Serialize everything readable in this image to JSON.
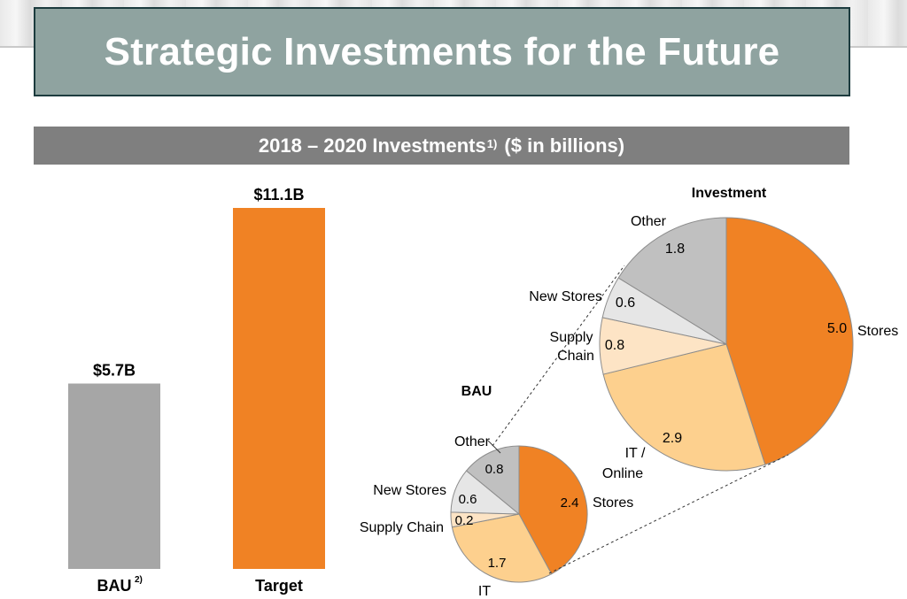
{
  "header": {
    "title": "Strategic Investments for the Future"
  },
  "subtitle": {
    "text": "2018 – 2020 Investments",
    "footnote": "1)",
    "unit": "($ in billions)"
  },
  "colors": {
    "title_bg": "#8fa3a0",
    "title_border": "#1c3b3e",
    "subtitle_bg": "#7f7f7f",
    "bau_bar": "#a6a6a6",
    "target_bar": "#f08224",
    "stores": "#f08224",
    "it": "#fdd08e",
    "supply_chain": "#fde4c5",
    "new_stores": "#e6e6e6",
    "other": "#c0c0c0"
  },
  "chart_data": [
    {
      "type": "bar",
      "categories": [
        "BAU",
        "Target"
      ],
      "category_footnotes": [
        "2)",
        ""
      ],
      "values": [
        5.7,
        11.1
      ],
      "value_labels": [
        "$5.7B",
        "$11.1B"
      ],
      "ylim": [
        0,
        11.1
      ]
    },
    {
      "type": "pie",
      "title": "BAU",
      "slices": [
        {
          "label": "Stores",
          "value": 2.4,
          "value_label": "2.4",
          "color": "#f08224"
        },
        {
          "label": "IT",
          "value": 1.7,
          "value_label": "1.7",
          "color": "#fdd08e"
        },
        {
          "label": "Supply Chain",
          "value": 0.2,
          "value_label": "0.2",
          "color": "#fde4c5"
        },
        {
          "label": "New Stores",
          "value": 0.6,
          "value_label": "0.6",
          "color": "#e6e6e6"
        },
        {
          "label": "Other",
          "value": 0.8,
          "value_label": "0.8",
          "color": "#c0c0c0"
        }
      ]
    },
    {
      "type": "pie",
      "title": "Investment",
      "slices": [
        {
          "label": "Stores",
          "value": 5.0,
          "value_label": "5.0",
          "color": "#f08224"
        },
        {
          "label": "IT / Online",
          "label_lines": [
            "IT /",
            "Online"
          ],
          "value": 2.9,
          "value_label": "2.9",
          "color": "#fdd08e"
        },
        {
          "label": "Supply Chain",
          "label_lines": [
            "Supply",
            "Chain"
          ],
          "value": 0.8,
          "value_label": "0.8",
          "color": "#fde4c5"
        },
        {
          "label": "New Stores",
          "value": 0.6,
          "value_label": "0.6",
          "color": "#e6e6e6"
        },
        {
          "label": "Other",
          "value": 1.8,
          "value_label": "1.8",
          "color": "#c0c0c0"
        }
      ]
    }
  ]
}
